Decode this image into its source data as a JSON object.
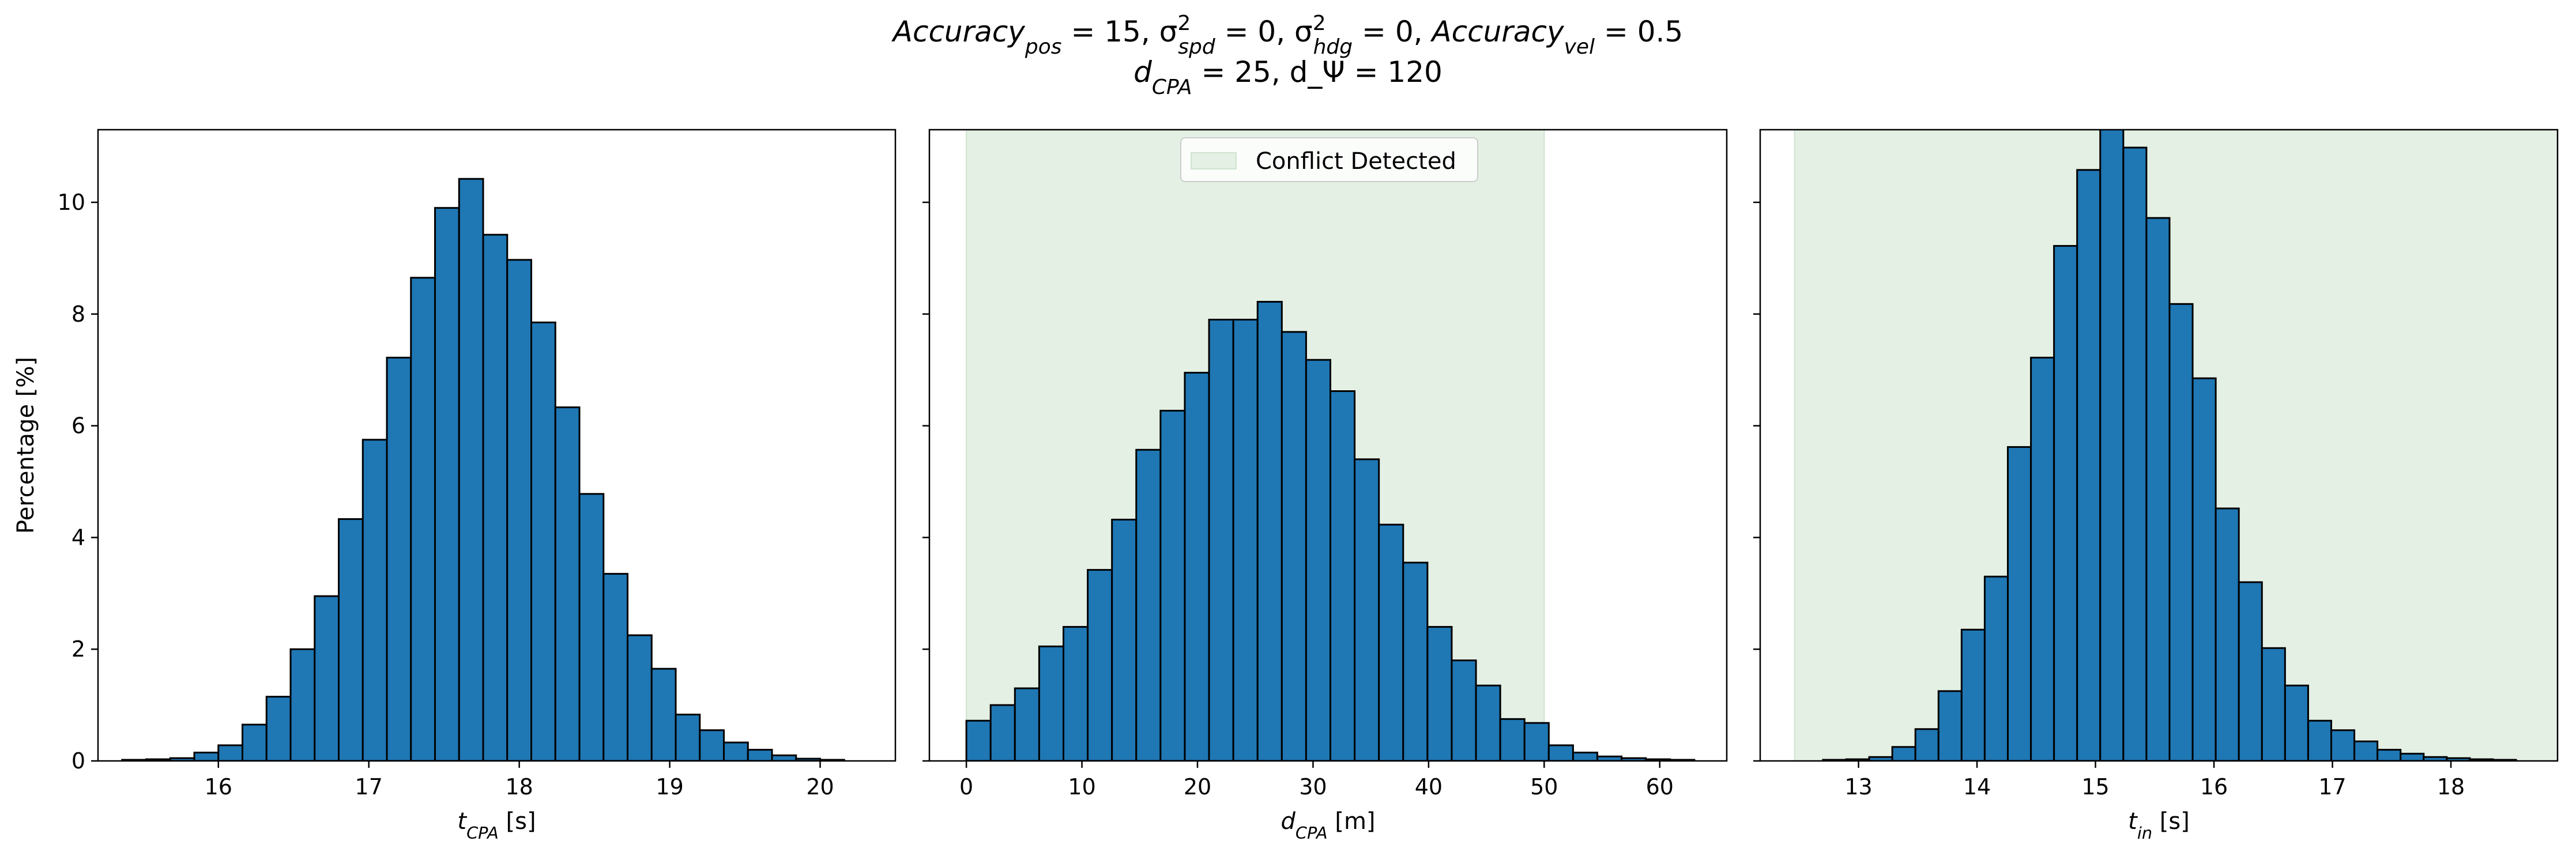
{
  "figure": {
    "title_line1": "Accuracy_pos = 15, σ²_spd = 0, σ²_hdg = 0, Accuracy_vel = 0.5",
    "title_line2": "d_CPA = 25, d_Ψ = 120"
  },
  "colors": {
    "bar_fill": "#1f77b4",
    "bar_edge": "#000000",
    "conflict_region": "#e5f0e5",
    "conflict_edge": "#cfe3cf"
  },
  "chart_data": [
    {
      "type": "bar",
      "subtype": "histogram",
      "xlabel": "t_CPA [s]",
      "ylabel": "Percentage [%]",
      "xlim": [
        15.2,
        20.5
      ],
      "ylim": [
        0,
        11.3
      ],
      "xticks": [
        16,
        17,
        18,
        19,
        20
      ],
      "yticks": [
        0,
        2,
        4,
        6,
        8,
        10
      ],
      "bin_start": 15.36,
      "bin_width": 0.16,
      "values": [
        0.02,
        0.03,
        0.05,
        0.15,
        0.28,
        0.65,
        1.15,
        2.0,
        2.95,
        4.33,
        5.75,
        7.22,
        8.65,
        9.9,
        10.42,
        9.42,
        8.97,
        7.85,
        6.33,
        4.78,
        3.35,
        2.25,
        1.65,
        0.83,
        0.55,
        0.33,
        0.2,
        0.1,
        0.04,
        0.02
      ],
      "legend": null,
      "grid": false
    },
    {
      "type": "bar",
      "subtype": "histogram",
      "xlabel": "d_CPA [m]",
      "ylabel": "",
      "xlim": [
        -3.2,
        65.8
      ],
      "ylim": [
        0,
        11.3
      ],
      "xticks": [
        0,
        10,
        20,
        30,
        40,
        50,
        60
      ],
      "yticks": [
        0,
        2,
        4,
        6,
        8,
        10
      ],
      "bin_start": 0,
      "bin_width": 2.1,
      "values": [
        0.72,
        1.0,
        1.3,
        2.05,
        2.4,
        3.42,
        4.32,
        5.57,
        6.27,
        6.95,
        7.9,
        7.9,
        8.22,
        7.68,
        7.18,
        6.62,
        5.4,
        4.23,
        3.55,
        2.4,
        1.8,
        1.35,
        0.75,
        0.68,
        0.28,
        0.15,
        0.08,
        0.05,
        0.03,
        0.02
      ],
      "conflict_region": [
        0,
        50
      ],
      "legend": {
        "entries": [
          "Conflict Detected"
        ],
        "placement": "upper center"
      },
      "grid": false
    },
    {
      "type": "bar",
      "subtype": "histogram",
      "xlabel": "t_in [s]",
      "ylabel": "",
      "xlim": [
        12.17,
        18.9
      ],
      "ylim": [
        0,
        11.3
      ],
      "xticks": [
        13,
        14,
        15,
        16,
        17,
        18
      ],
      "yticks": [
        0,
        2,
        4,
        6,
        8,
        10
      ],
      "bin_start": 12.7,
      "bin_width": 0.195,
      "values": [
        0.02,
        0.03,
        0.07,
        0.25,
        0.57,
        1.25,
        2.35,
        3.3,
        5.62,
        7.22,
        9.22,
        10.58,
        11.4,
        10.98,
        9.72,
        8.18,
        6.85,
        4.52,
        3.2,
        2.02,
        1.35,
        0.72,
        0.55,
        0.35,
        0.2,
        0.13,
        0.07,
        0.05,
        0.03,
        0.02
      ],
      "conflict_region": [
        12.46,
        19.5
      ],
      "legend": null,
      "grid": false
    }
  ]
}
